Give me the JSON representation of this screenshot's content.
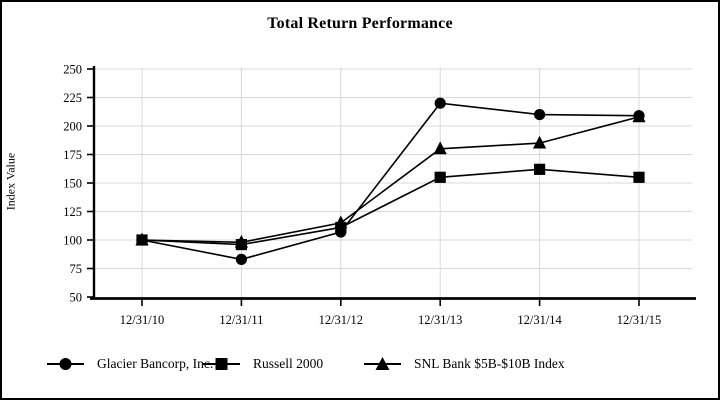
{
  "chart_data": {
    "type": "line",
    "title": "Total Return Performance",
    "xlabel": "",
    "ylabel": "Index Value",
    "categories": [
      "12/31/10",
      "12/31/11",
      "12/31/12",
      "12/31/13",
      "12/31/14",
      "12/31/15"
    ],
    "y_ticks": [
      50,
      75,
      100,
      125,
      150,
      175,
      200,
      225,
      250
    ],
    "ylim": [
      50,
      250
    ],
    "grid": true,
    "legend_position": "bottom",
    "series": [
      {
        "name": "Glacier Bancorp, Inc.",
        "marker": "circle",
        "values": [
          100,
          83,
          107,
          220,
          210,
          209
        ]
      },
      {
        "name": "Russell 2000",
        "marker": "square",
        "values": [
          100,
          96,
          111,
          155,
          162,
          155
        ]
      },
      {
        "name": "SNL Bank $5B-$10B Index",
        "marker": "triangle",
        "values": [
          100,
          98,
          115,
          180,
          185,
          208
        ]
      }
    ],
    "colors": {
      "line": "#000000",
      "marker": "#000000",
      "grid": "#d9d9d9",
      "axis": "#000000",
      "background": "#ffffff",
      "frame_border": "#000000"
    }
  }
}
